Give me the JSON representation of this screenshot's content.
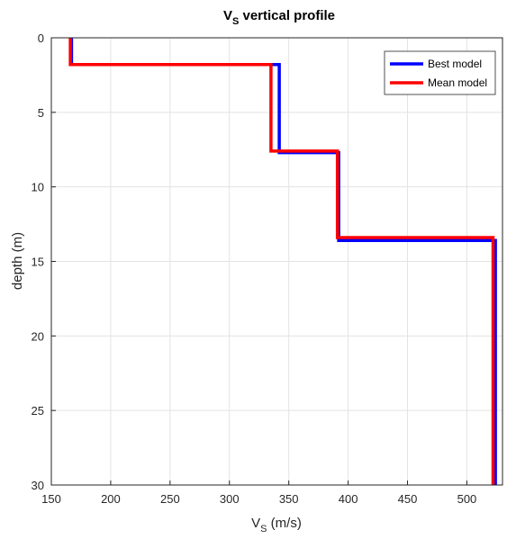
{
  "chart_data": {
    "type": "line",
    "title": {
      "main": "V",
      "sub": "S",
      "rest": " vertical profile"
    },
    "xlabel": {
      "main": "V",
      "sub": "S",
      "rest": " (m/s)"
    },
    "ylabel": "depth (m)",
    "xlim": [
      150,
      530
    ],
    "ylim": [
      0,
      30
    ],
    "y_reversed": true,
    "x_ticks": [
      150,
      200,
      250,
      300,
      350,
      400,
      450,
      500
    ],
    "y_ticks": [
      0,
      5,
      10,
      15,
      20,
      25,
      30
    ],
    "grid": true,
    "legend_position": "top-right",
    "series": [
      {
        "name": "Best model",
        "color": "#0000ff",
        "points": [
          [
            167,
            0
          ],
          [
            167,
            1.8
          ],
          [
            342,
            1.8
          ],
          [
            342,
            7.7
          ],
          [
            392,
            7.7
          ],
          [
            392,
            13.6
          ],
          [
            524,
            13.6
          ],
          [
            524,
            30
          ]
        ]
      },
      {
        "name": "Mean model",
        "color": "#ff0000",
        "points": [
          [
            166,
            0
          ],
          [
            166,
            1.8
          ],
          [
            335,
            1.8
          ],
          [
            335,
            7.6
          ],
          [
            391,
            7.6
          ],
          [
            391,
            13.4
          ],
          [
            522,
            13.4
          ],
          [
            522,
            30
          ]
        ]
      }
    ]
  }
}
